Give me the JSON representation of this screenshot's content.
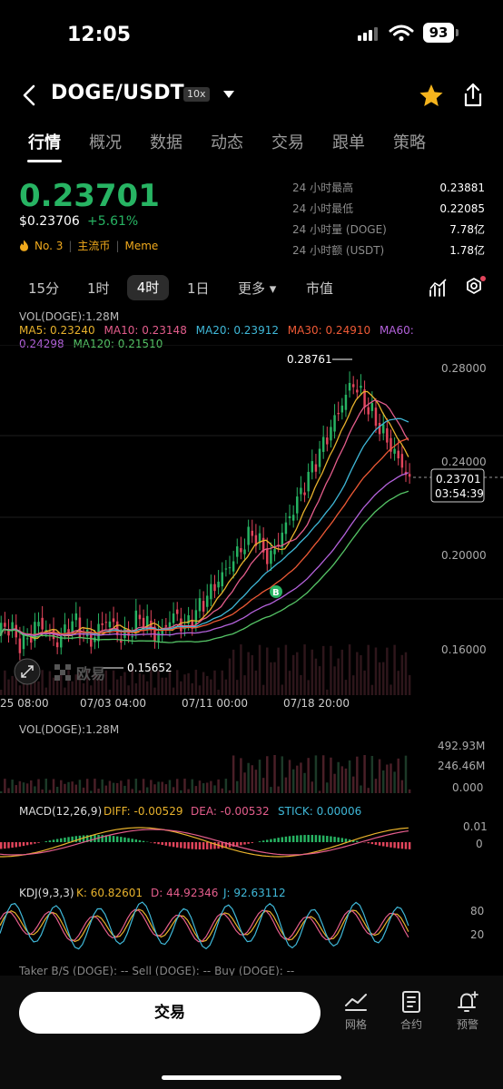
{
  "status_bar": {
    "time": "12:05",
    "battery": "93"
  },
  "header": {
    "pair": "DOGE/USDT",
    "leverage": "10x"
  },
  "tabs": [
    "行情",
    "概况",
    "数据",
    "动态",
    "交易",
    "跟单",
    "策略"
  ],
  "ticker": {
    "price": "0.23701",
    "usd_price": "$0.23706",
    "change": "+5.61%",
    "tags": [
      "No. 3",
      "主流币",
      "Meme"
    ],
    "stats": [
      {
        "label": "24 小时最高",
        "value": "0.23881"
      },
      {
        "label": "24 小时最低",
        "value": "0.22085"
      },
      {
        "label": "24 小时量 (DOGE)",
        "value": "7.78亿"
      },
      {
        "label": "24 小时额 (USDT)",
        "value": "1.78亿"
      }
    ]
  },
  "intervals": {
    "items": [
      "15分",
      "1时",
      "4时",
      "1日",
      "更多 ▾",
      "市值"
    ],
    "active": "4时"
  },
  "main_chart": {
    "vol_label": "VOL(DOGE):1.28M",
    "ma": [
      {
        "label": "MA5: 0.23240",
        "color": "#e8b22c"
      },
      {
        "label": "MA10: 0.23148",
        "color": "#e45d8c"
      },
      {
        "label": "MA20: 0.23912",
        "color": "#3fb8d8"
      },
      {
        "label": "MA30: 0.24910",
        "color": "#ef5a36"
      },
      {
        "label": "MA60: 0.24298",
        "color": "#b462dc"
      },
      {
        "label": "MA120: 0.21510",
        "color": "#55c466"
      }
    ],
    "y_labels": [
      "0.28000",
      "0.24000",
      "0.20000",
      "0.16000"
    ],
    "x_labels": [
      "25 08:00",
      "07/03 04:00",
      "07/11 00:00",
      "07/18 20:00"
    ],
    "high_marker": "0.28761",
    "low_marker": "0.15652",
    "current_price": "0.23701",
    "countdown": "03:54:39",
    "buy_marker": "B",
    "watermark": "欧易"
  },
  "volume_panel": {
    "label": "VOL(DOGE):1.28M",
    "y_labels": [
      "492.93M",
      "246.46M",
      "0.000"
    ]
  },
  "macd_panel": {
    "label": "MACD(12,26,9)",
    "diff": "DIFF: -0.00529",
    "dea": "DEA: -0.00532",
    "stick": "STICK: 0.00006",
    "y_labels": [
      "0.01",
      "0"
    ]
  },
  "kdj_panel": {
    "label": "KDJ(9,3,3)",
    "k": "K: 60.82601",
    "d": "D: 44.92346",
    "j": "J: 92.63112",
    "y_labels": [
      "80",
      "20"
    ]
  },
  "taker_label": "Taker B/S (DOGE): --    Sell (DOGE): --    Buy (DOGE): --",
  "bottom_bar": {
    "trade": "交易",
    "items": [
      "网格",
      "合约",
      "预警"
    ]
  },
  "colors": {
    "up": "#27b463",
    "down": "#e2455c",
    "accent": "#f0a91c"
  }
}
